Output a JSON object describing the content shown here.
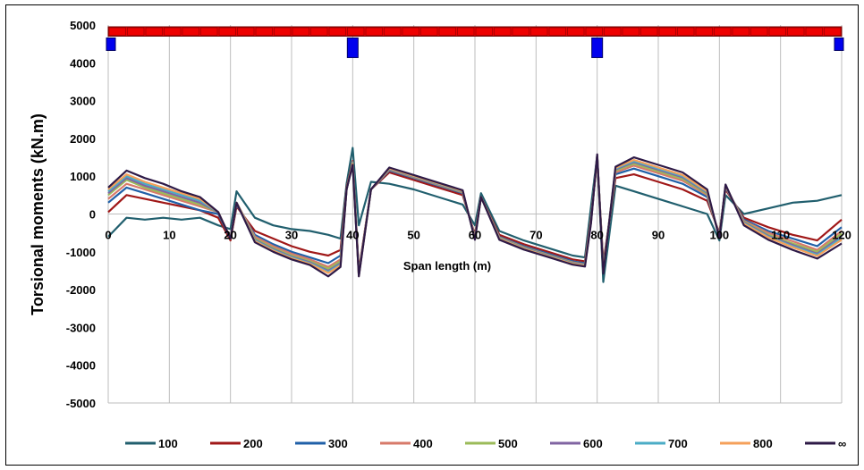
{
  "chart_data": {
    "type": "line",
    "xlabel": "Span length (m)",
    "ylabel": "Torsional  moments (kN.m)",
    "xlim": [
      0,
      120
    ],
    "ylim": [
      -5000,
      5000
    ],
    "x_ticks": [
      0,
      10,
      20,
      30,
      40,
      50,
      60,
      70,
      80,
      90,
      100,
      110,
      120
    ],
    "y_ticks": [
      5000,
      4000,
      3000,
      2000,
      1000,
      0,
      -1000,
      -2000,
      -3000,
      -4000,
      -5000
    ],
    "x_tick_labels": [
      "0",
      "10",
      "20",
      "30",
      "40",
      "50",
      "60",
      "70",
      "80",
      "90",
      "100",
      "110",
      "120"
    ],
    "y_tick_labels": [
      "5000",
      "4000",
      "3000",
      "2000",
      "1000",
      "0",
      "-1000",
      "-2000",
      "-3000",
      "-4000",
      "-5000"
    ],
    "grid": "vertical",
    "legend_position": "bottom",
    "supports_x": [
      0,
      40,
      80,
      120
    ],
    "x": [
      0,
      3,
      6,
      9,
      12,
      15,
      18,
      20,
      21,
      24,
      27,
      30,
      33,
      36,
      38,
      39,
      40,
      41,
      43,
      46,
      50,
      54,
      58,
      60,
      61,
      64,
      68,
      72,
      76,
      78,
      79,
      80,
      81,
      83,
      86,
      90,
      94,
      98,
      100,
      101,
      104,
      108,
      112,
      116,
      120
    ],
    "series": [
      {
        "name": "100",
        "color": "#215f6e",
        "values": [
          -600,
          -100,
          -150,
          -100,
          -150,
          -100,
          -300,
          -400,
          600,
          -100,
          -300,
          -400,
          -450,
          -550,
          -650,
          800,
          1750,
          -300,
          850,
          800,
          650,
          450,
          250,
          -300,
          550,
          -450,
          -700,
          -900,
          -1100,
          -1150,
          200,
          1550,
          -1800,
          750,
          600,
          400,
          200,
          0,
          -700,
          500,
          0,
          150,
          300,
          350,
          500
        ]
      },
      {
        "name": "200",
        "color": "#a01818",
        "values": [
          50,
          500,
          400,
          300,
          200,
          100,
          -100,
          -700,
          200,
          -450,
          -650,
          -850,
          -1000,
          -1100,
          -950,
          700,
          1400,
          -1500,
          650,
          1100,
          900,
          700,
          500,
          -550,
          450,
          -550,
          -800,
          -1000,
          -1200,
          -1250,
          -100,
          1450,
          -1300,
          950,
          1050,
          850,
          650,
          350,
          -500,
          650,
          -100,
          -350,
          -550,
          -700,
          -150
        ]
      },
      {
        "name": "300",
        "color": "#2060a8",
        "values": [
          300,
          700,
          550,
          400,
          250,
          100,
          0,
          -650,
          250,
          -550,
          -800,
          -1000,
          -1150,
          -1300,
          -1100,
          650,
          1380,
          -1550,
          650,
          1150,
          950,
          750,
          550,
          -600,
          450,
          -600,
          -850,
          -1050,
          -1250,
          -1300,
          -150,
          1500,
          -1400,
          1050,
          1200,
          1000,
          800,
          450,
          -550,
          700,
          -150,
          -450,
          -650,
          -850,
          -350
        ]
      },
      {
        "name": "400",
        "color": "#d77a6a",
        "values": [
          400,
          800,
          650,
          500,
          350,
          200,
          50,
          -650,
          300,
          -600,
          -850,
          -1050,
          -1200,
          -1400,
          -1200,
          650,
          1370,
          -1580,
          650,
          1170,
          970,
          770,
          570,
          -620,
          450,
          -620,
          -880,
          -1080,
          -1280,
          -1330,
          -180,
          1520,
          -1450,
          1100,
          1280,
          1080,
          880,
          500,
          -580,
          720,
          -180,
          -500,
          -720,
          -950,
          -450
        ]
      },
      {
        "name": "500",
        "color": "#9bbb59",
        "values": [
          500,
          900,
          700,
          550,
          400,
          250,
          50,
          -650,
          300,
          -650,
          -900,
          -1100,
          -1250,
          -1450,
          -1250,
          650,
          1360,
          -1600,
          650,
          1180,
          980,
          780,
          580,
          -630,
          450,
          -630,
          -890,
          -1090,
          -1290,
          -1340,
          -190,
          1530,
          -1480,
          1150,
          1330,
          1130,
          930,
          530,
          -590,
          730,
          -200,
          -550,
          -780,
          -1000,
          -520
        ]
      },
      {
        "name": "600",
        "color": "#8064a2",
        "values": [
          550,
          950,
          750,
          600,
          450,
          300,
          50,
          -650,
          300,
          -680,
          -930,
          -1130,
          -1280,
          -1500,
          -1300,
          650,
          1350,
          -1620,
          650,
          1190,
          990,
          790,
          590,
          -640,
          450,
          -640,
          -900,
          -1100,
          -1300,
          -1350,
          -200,
          1540,
          -1500,
          1180,
          1370,
          1170,
          970,
          560,
          -600,
          740,
          -220,
          -580,
          -820,
          -1050,
          -580
        ]
      },
      {
        "name": "700",
        "color": "#4bacc6",
        "values": [
          600,
          1000,
          800,
          650,
          500,
          350,
          50,
          -650,
          300,
          -700,
          -950,
          -1150,
          -1300,
          -1530,
          -1330,
          650,
          1340,
          -1630,
          650,
          1200,
          1000,
          800,
          600,
          -650,
          450,
          -650,
          -910,
          -1110,
          -1310,
          -1360,
          -210,
          1550,
          -1520,
          1200,
          1400,
          1200,
          1000,
          580,
          -610,
          750,
          -240,
          -600,
          -850,
          -1080,
          -630
        ]
      },
      {
        "name": "800",
        "color": "#f5a05a",
        "values": [
          650,
          1050,
          850,
          700,
          550,
          400,
          50,
          -650,
          300,
          -720,
          -970,
          -1170,
          -1320,
          -1560,
          -1360,
          650,
          1330,
          -1640,
          650,
          1210,
          1010,
          810,
          610,
          -660,
          450,
          -660,
          -920,
          -1120,
          -1320,
          -1370,
          -220,
          1560,
          -1540,
          1220,
          1430,
          1230,
          1030,
          600,
          -620,
          760,
          -260,
          -620,
          -880,
          -1110,
          -680
        ]
      },
      {
        "name": "∞",
        "color": "#2e1a47",
        "values": [
          700,
          1150,
          950,
          800,
          600,
          450,
          50,
          -650,
          300,
          -750,
          -1000,
          -1200,
          -1350,
          -1650,
          -1400,
          650,
          1300,
          -1650,
          650,
          1230,
          1030,
          830,
          630,
          -680,
          450,
          -680,
          -940,
          -1140,
          -1340,
          -1390,
          -240,
          1580,
          -1580,
          1250,
          1500,
          1300,
          1100,
          650,
          -640,
          780,
          -300,
          -680,
          -950,
          -1180,
          -780
        ]
      }
    ]
  },
  "bar_color": "#ee0000",
  "support_color": "#0000ee",
  "grid_color": "#bdbdbd"
}
